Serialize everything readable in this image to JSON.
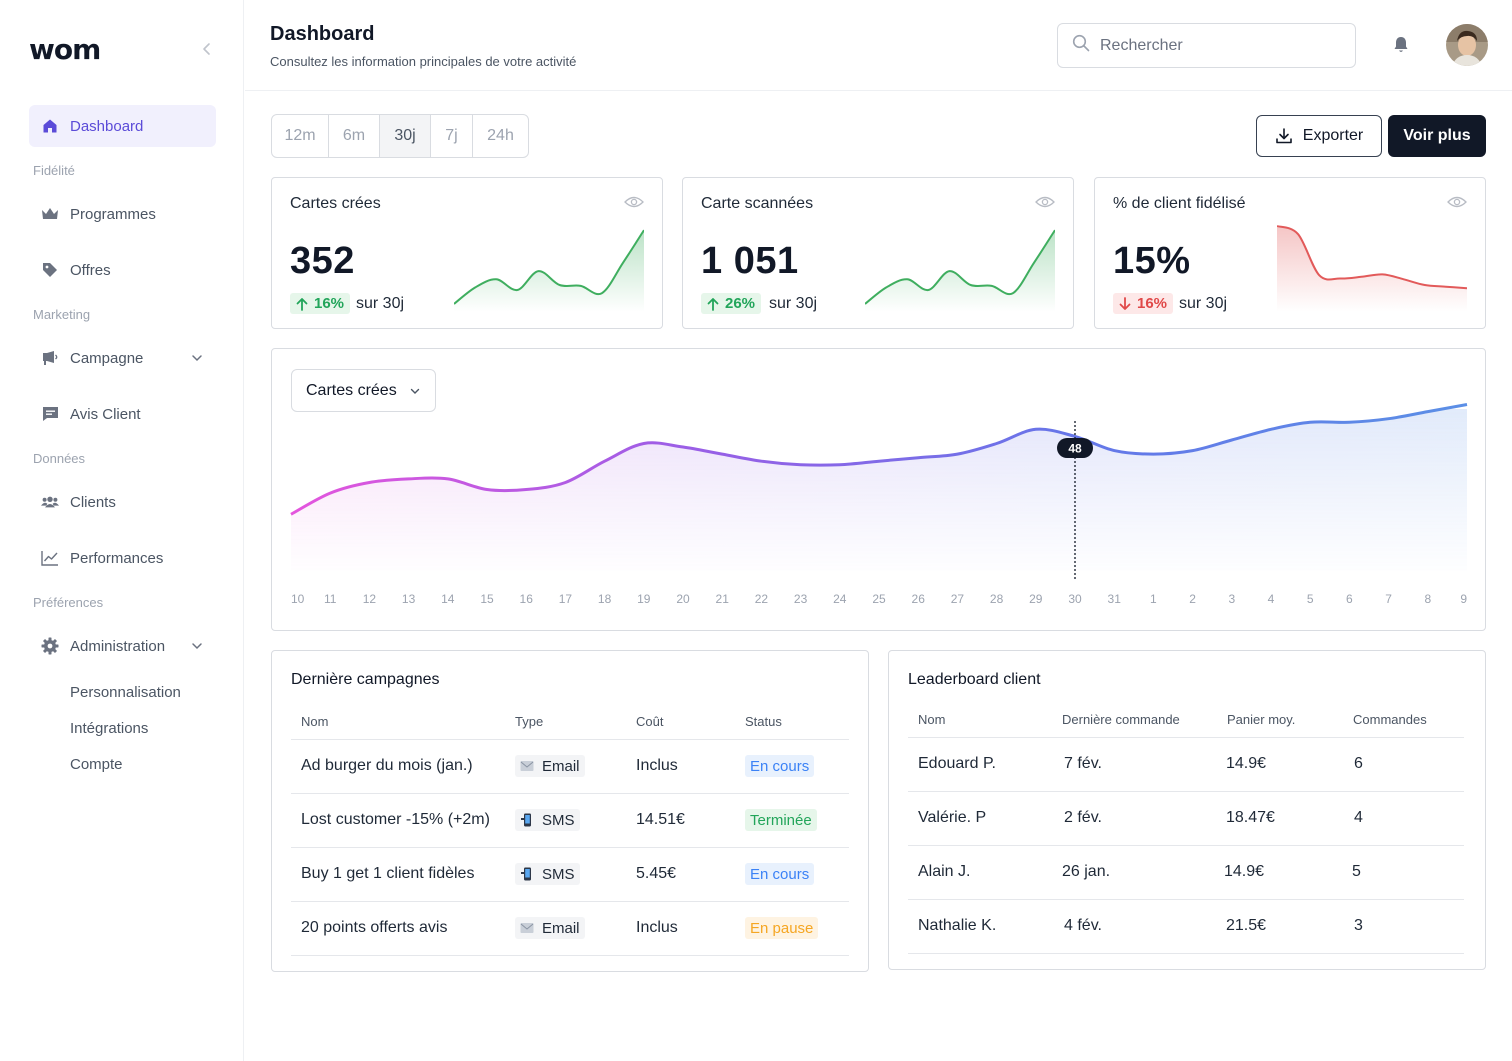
{
  "app": {
    "logo": "wom"
  },
  "sidebar": {
    "dashboard": "Dashboard",
    "sections": {
      "fidelite": "Fidélité",
      "marketing": "Marketing",
      "donnees": "Données",
      "preferences": "Préférences"
    },
    "items": {
      "programmes": "Programmes",
      "offres": "Offres",
      "campagne": "Campagne",
      "avis": "Avis Client",
      "clients": "Clients",
      "performances": "Performances",
      "administration": "Administration"
    },
    "sub_items": {
      "personnalisation": "Personnalisation",
      "integrations": "Intégrations",
      "compte": "Compte"
    }
  },
  "header": {
    "title": "Dashboard",
    "subtitle": "Consultez les information principales de votre activité",
    "search_placeholder": "Rechercher"
  },
  "filters": {
    "periods": [
      "12m",
      "6m",
      "30j",
      "7j",
      "24h"
    ],
    "selected": "30j",
    "export_label": "Exporter",
    "more_label": "Voir plus"
  },
  "kpis": [
    {
      "title": "Cartes crées",
      "value": "352",
      "change": "16%",
      "direction": "up",
      "period": "sur 30j",
      "color": "#3fae5f",
      "trend": [
        0.05,
        0.25,
        0.35,
        0.22,
        0.45,
        0.28,
        0.27,
        0.18,
        0.55,
        0.95
      ]
    },
    {
      "title": "Carte scannées",
      "value": "1 051",
      "change": "26%",
      "direction": "up",
      "period": "sur 30j",
      "color": "#3fae5f",
      "trend": [
        0.05,
        0.25,
        0.35,
        0.22,
        0.45,
        0.28,
        0.27,
        0.18,
        0.55,
        0.95
      ]
    },
    {
      "title": "% de client fidélisé",
      "value": "15%",
      "change": "16%",
      "direction": "down",
      "period": "sur 30j",
      "color": "#e25a5a",
      "trend": [
        1.0,
        0.9,
        0.4,
        0.36,
        0.38,
        0.41,
        0.35,
        0.28,
        0.26,
        0.24
      ]
    }
  ],
  "chart_data": {
    "type": "area",
    "selector_label": "Cartes crées",
    "x": [
      "10",
      "11",
      "12",
      "13",
      "14",
      "15",
      "16",
      "17",
      "18",
      "19",
      "20",
      "21",
      "22",
      "23",
      "24",
      "25",
      "26",
      "27",
      "28",
      "29",
      "30",
      "31",
      "1",
      "2",
      "3",
      "4",
      "5",
      "6",
      "7",
      "8",
      "9"
    ],
    "values": [
      26,
      32,
      35,
      36,
      36,
      33,
      33,
      35,
      41,
      46,
      45,
      43,
      41,
      40,
      40,
      41,
      42,
      43,
      46,
      50,
      48,
      44,
      43,
      44,
      47,
      50,
      52,
      52,
      53,
      55,
      57
    ],
    "ylim": [
      10,
      58
    ],
    "highlight": {
      "x": "30",
      "label": "48"
    },
    "gradient": [
      "#e455dd",
      "#9b5ee6",
      "#6576e8",
      "#5b8fe6"
    ]
  },
  "campaigns": {
    "title": "Dernière campagnes",
    "columns": [
      "Nom",
      "Type",
      "Coût",
      "Status"
    ],
    "rows": [
      {
        "name": "Ad burger du mois (jan.)",
        "type": "Email",
        "cost": "Inclus",
        "status": "En cours",
        "status_kind": "blue"
      },
      {
        "name": "Lost customer -15% (+2m)",
        "type": "SMS",
        "cost": "14.51€",
        "status": "Terminée",
        "status_kind": "green"
      },
      {
        "name": "Buy 1 get 1 client fidèles",
        "type": "SMS",
        "cost": "5.45€",
        "status": "En cours",
        "status_kind": "blue"
      },
      {
        "name": "20 points offerts avis",
        "type": "Email",
        "cost": "Inclus",
        "status": "En pause",
        "status_kind": "orange"
      }
    ]
  },
  "leaderboard": {
    "title": "Leaderboard client",
    "columns": [
      "Nom",
      "Dernière commande",
      "Panier moy.",
      "Commandes"
    ],
    "rows": [
      {
        "name": "Edouard P.",
        "last": "7 fév.",
        "basket": "14.9€",
        "orders": "6"
      },
      {
        "name": "Valérie. P",
        "last": "2 fév.",
        "basket": "18.47€",
        "orders": "4"
      },
      {
        "name": "Alain J.",
        "last": "26 jan.",
        "basket": "14.9€",
        "orders": "5"
      },
      {
        "name": "Nathalie K.",
        "last": "4 fév.",
        "basket": "21.5€",
        "orders": "3"
      }
    ]
  },
  "colors": {
    "accent": "#5b4bd8",
    "primary_dark": "#111827"
  }
}
